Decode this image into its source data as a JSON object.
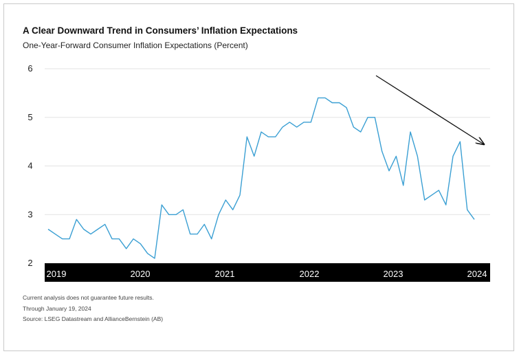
{
  "title": "A Clear Downward Trend in Consumers’ Inflation Expectations",
  "subtitle": "One-Year-Forward Consumer Inflation Expectations (Percent)",
  "footnotes": [
    "Current analysis does not guarantee future results.",
    "Through January 19, 2024",
    "Source: LSEG Datastream and AllianceBernstein (AB)"
  ],
  "colors": {
    "line": "#3a9fd3",
    "axis_band": "#000000",
    "axis_text": "#ffffff",
    "grid": "#e3e3e3",
    "arrow": "#111111"
  },
  "chart_data": {
    "type": "line",
    "title": "A Clear Downward Trend in Consumers’ Inflation Expectations",
    "subtitle": "One-Year-Forward Consumer Inflation Expectations (Percent)",
    "xlabel": "",
    "ylabel": "",
    "ylim": [
      2,
      6
    ],
    "yticks": [
      2,
      3,
      4,
      5,
      6
    ],
    "xlim": [
      "2019-01",
      "2024-01"
    ],
    "xticks": [
      "2019",
      "2020",
      "2021",
      "2022",
      "2023",
      "2024"
    ],
    "grid": "horizontal",
    "annotation": "downward-trend-arrow",
    "series": [
      {
        "x": [
          "2019-01",
          "2019-02",
          "2019-03",
          "2019-04",
          "2019-05",
          "2019-06",
          "2019-07",
          "2019-08",
          "2019-09",
          "2019-10",
          "2019-11",
          "2019-12",
          "2020-01",
          "2020-02",
          "2020-03",
          "2020-04",
          "2020-05",
          "2020-06",
          "2020-07",
          "2020-08",
          "2020-09",
          "2020-10",
          "2020-11",
          "2020-12",
          "2021-01",
          "2021-02",
          "2021-03",
          "2021-04",
          "2021-05",
          "2021-06",
          "2021-07",
          "2021-08",
          "2021-09",
          "2021-10",
          "2021-11",
          "2021-12",
          "2022-01",
          "2022-02",
          "2022-03",
          "2022-04",
          "2022-05",
          "2022-06",
          "2022-07",
          "2022-08",
          "2022-09",
          "2022-10",
          "2022-11",
          "2022-12",
          "2023-01",
          "2023-02",
          "2023-03",
          "2023-04",
          "2023-05",
          "2023-06",
          "2023-07",
          "2023-08",
          "2023-09",
          "2023-10",
          "2023-11",
          "2023-12",
          "2024-01"
        ],
        "values": [
          2.7,
          2.6,
          2.5,
          2.5,
          2.9,
          2.7,
          2.6,
          2.7,
          2.8,
          2.5,
          2.5,
          2.3,
          2.5,
          2.4,
          2.2,
          2.1,
          3.2,
          3.0,
          3.0,
          3.1,
          2.6,
          2.6,
          2.8,
          2.5,
          3.0,
          3.3,
          3.1,
          3.4,
          4.6,
          4.2,
          4.7,
          4.6,
          4.6,
          4.8,
          4.9,
          4.8,
          4.9,
          4.9,
          5.4,
          5.4,
          5.3,
          5.3,
          5.2,
          4.8,
          4.7,
          5.0,
          5.0,
          4.3,
          3.9,
          4.2,
          3.6,
          4.7,
          4.2,
          3.3,
          3.4,
          3.5,
          3.2,
          4.2,
          4.5,
          3.1,
          2.9
        ]
      }
    ]
  }
}
